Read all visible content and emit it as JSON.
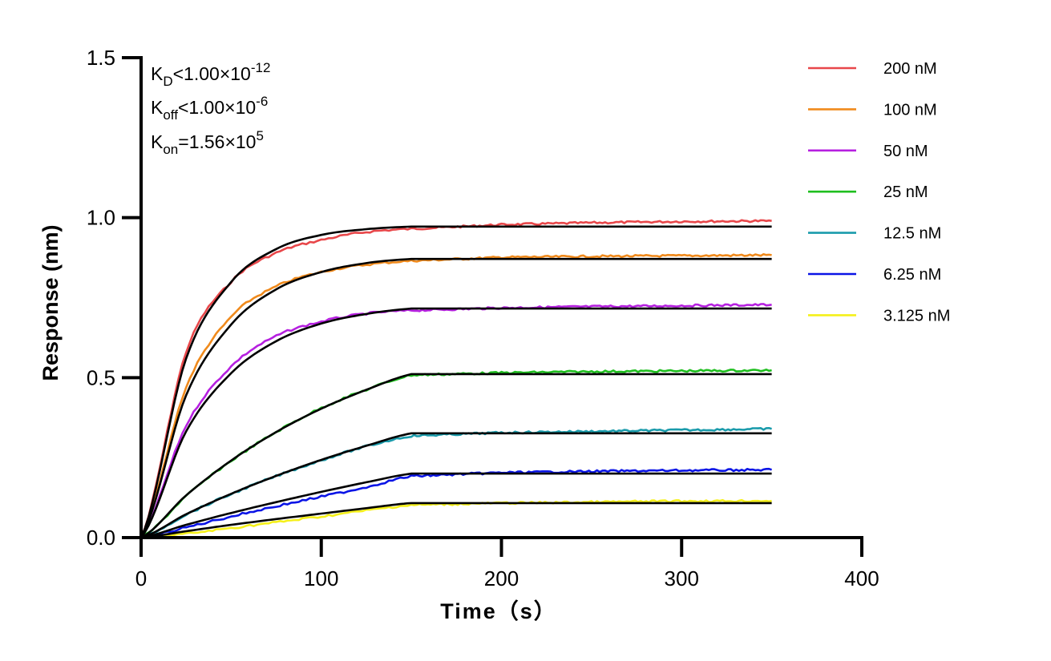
{
  "chart_data": {
    "type": "line",
    "title": "",
    "xlabel": "Time（s）",
    "ylabel": "Response (nm)",
    "xlim": [
      0,
      400
    ],
    "ylim": [
      0,
      1.5
    ],
    "xticks": [
      "0",
      "100",
      "200",
      "300",
      "400"
    ],
    "yticks": [
      "0.0",
      "0.5",
      "1.0",
      "1.5"
    ],
    "grid": false,
    "legend_position": "top-right",
    "annotations": {
      "kd": {
        "base": "K",
        "sub": "D",
        "rel": "<1.00×10",
        "exp": "-12"
      },
      "koff": {
        "base": "K",
        "sub": "off",
        "rel": "<1.00×10",
        "exp": "-6"
      },
      "kon": {
        "base": "K",
        "sub": "on",
        "rel": "=1.56×10",
        "exp": "5"
      }
    },
    "fit_color": "#000000",
    "measured_x": [
      0,
      25,
      50,
      75,
      100,
      125,
      150,
      200,
      250,
      300,
      350
    ],
    "fit_x": [
      0,
      25,
      50,
      75,
      100,
      125,
      150,
      350
    ],
    "series": [
      {
        "name": "200 nM",
        "color": "#e8474a",
        "values": [
          0,
          0.58,
          0.8,
          0.89,
          0.93,
          0.955,
          0.965,
          0.978,
          0.984,
          0.988,
          0.99
        ],
        "fit": [
          0,
          0.56,
          0.799,
          0.902,
          0.946,
          0.964,
          0.972,
          0.972
        ]
      },
      {
        "name": "100 nM",
        "color": "#f08a1c",
        "values": [
          0,
          0.47,
          0.69,
          0.785,
          0.83,
          0.853,
          0.865,
          0.876,
          0.879,
          0.881,
          0.883
        ],
        "fit": [
          0,
          0.445,
          0.666,
          0.776,
          0.83,
          0.858,
          0.871,
          0.871
        ]
      },
      {
        "name": "50 nM",
        "color": "#b620e0",
        "values": [
          0,
          0.35,
          0.535,
          0.63,
          0.675,
          0.7,
          0.71,
          0.718,
          0.722,
          0.725,
          0.728
        ],
        "fit": [
          0,
          0.332,
          0.514,
          0.614,
          0.669,
          0.699,
          0.716,
          0.716
        ]
      },
      {
        "name": "25 nM",
        "color": "#1fbf1f",
        "values": [
          0,
          0.13,
          0.24,
          0.33,
          0.405,
          0.462,
          0.508,
          0.515,
          0.519,
          0.521,
          0.523
        ],
        "fit": [
          0,
          0.132,
          0.241,
          0.33,
          0.403,
          0.462,
          0.511,
          0.511
        ]
      },
      {
        "name": "12.5 nM",
        "color": "#1a9bab",
        "values": [
          0,
          0.072,
          0.136,
          0.192,
          0.242,
          0.285,
          0.318,
          0.328,
          0.332,
          0.336,
          0.34
        ],
        "fit": [
          0,
          0.073,
          0.137,
          0.193,
          0.243,
          0.287,
          0.326,
          0.326
        ]
      },
      {
        "name": "6.25 nM",
        "color": "#0a14e6",
        "values": [
          0,
          0.032,
          0.066,
          0.098,
          0.128,
          0.158,
          0.192,
          0.203,
          0.207,
          0.21,
          0.212
        ],
        "fit": [
          0,
          0.04,
          0.077,
          0.111,
          0.143,
          0.173,
          0.2,
          0.2
        ]
      },
      {
        "name": "3.125 nM",
        "color": "#f5f01a",
        "values": [
          0,
          0.012,
          0.03,
          0.048,
          0.066,
          0.085,
          0.102,
          0.108,
          0.111,
          0.114,
          0.115
        ],
        "fit": [
          0,
          0.02,
          0.04,
          0.058,
          0.075,
          0.092,
          0.108,
          0.108
        ]
      }
    ]
  }
}
